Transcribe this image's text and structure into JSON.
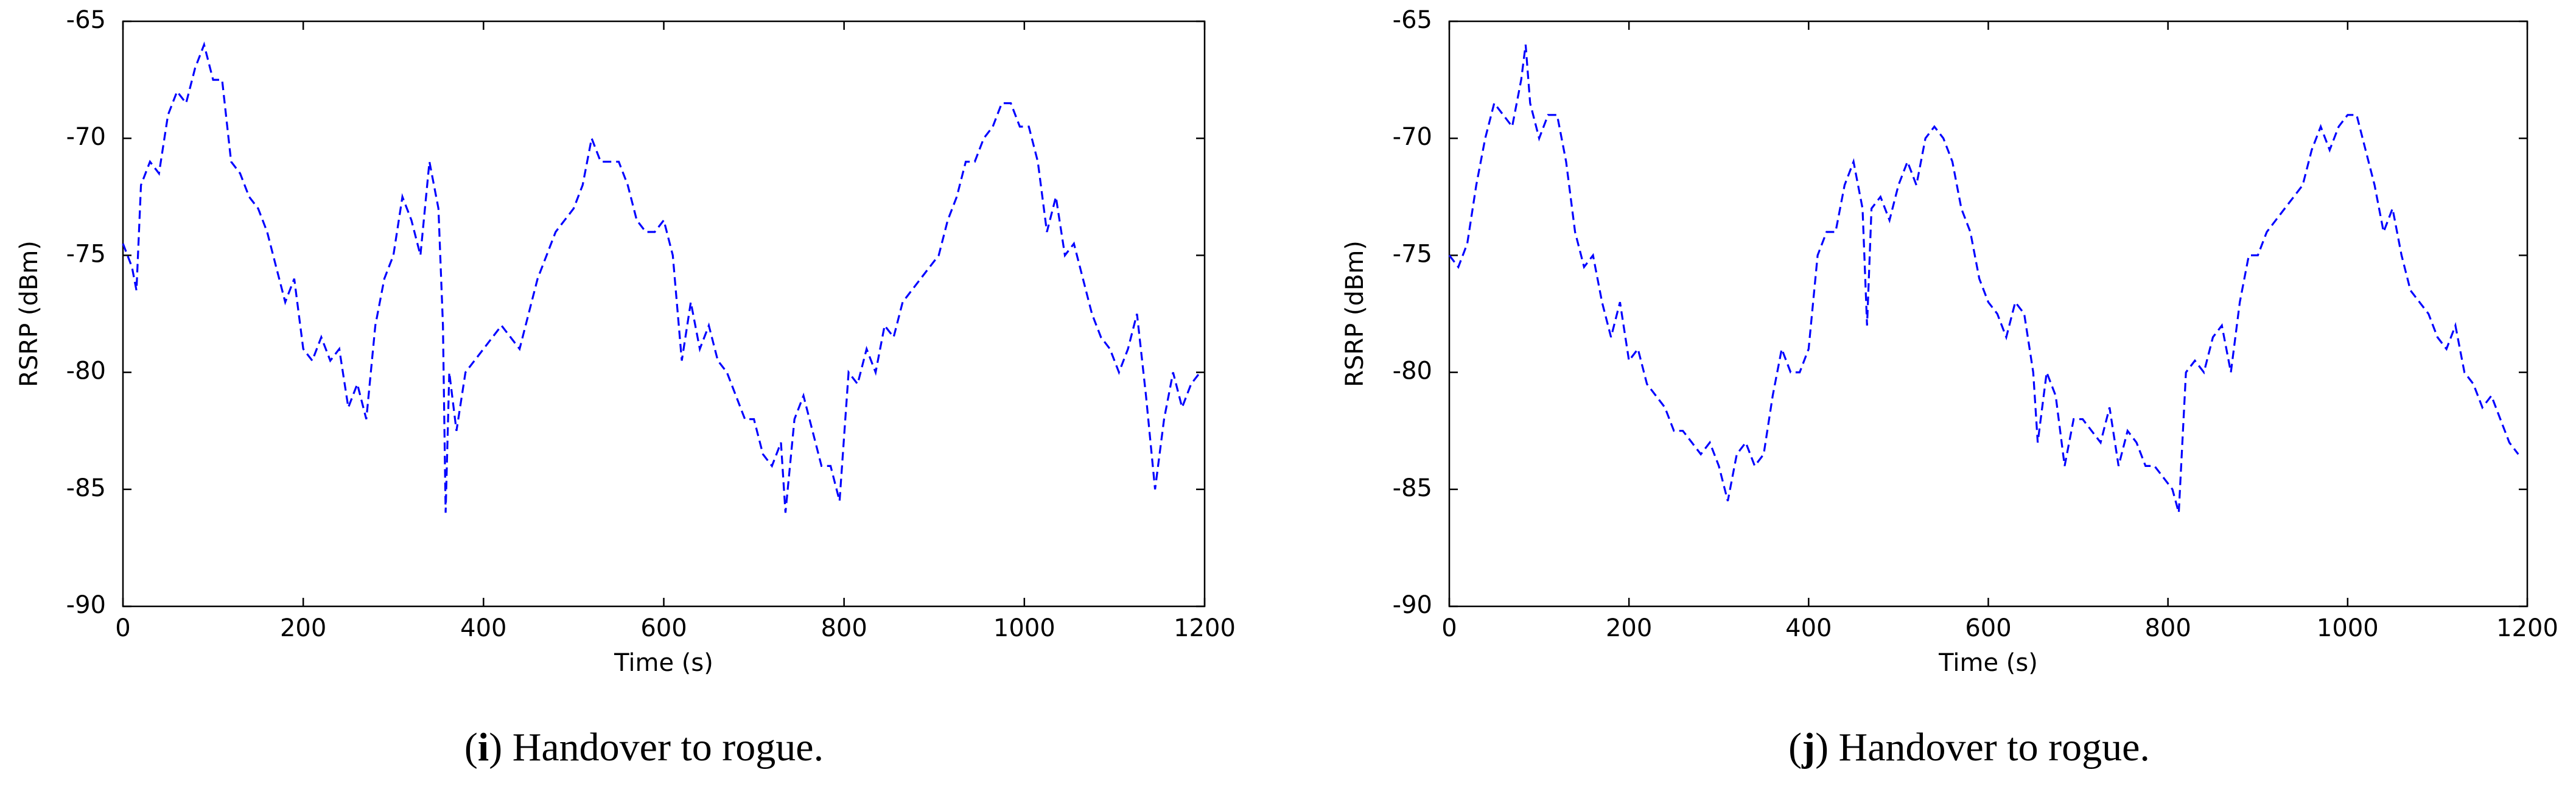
{
  "chart_data": [
    {
      "type": "line",
      "ylabel": "RSRP (dBm)",
      "xlabel": "Time (s)",
      "caption": [
        "(",
        "i",
        ") Handover to rogue."
      ],
      "xlim": [
        0,
        1200
      ],
      "ylim": [
        -90,
        -65
      ],
      "xticks": [
        0,
        200,
        400,
        600,
        800,
        1000,
        1200
      ],
      "yticks": [
        -90,
        -85,
        -80,
        -75,
        -70,
        -65
      ],
      "x": [
        0,
        10,
        15,
        20,
        30,
        40,
        50,
        60,
        70,
        80,
        90,
        100,
        110,
        120,
        130,
        140,
        150,
        160,
        170,
        180,
        190,
        200,
        210,
        220,
        230,
        240,
        250,
        260,
        270,
        280,
        290,
        300,
        310,
        320,
        330,
        340,
        350,
        355,
        358,
        362,
        370,
        380,
        390,
        400,
        420,
        440,
        450,
        460,
        470,
        480,
        490,
        500,
        510,
        520,
        530,
        540,
        550,
        560,
        570,
        580,
        590,
        600,
        610,
        620,
        630,
        640,
        650,
        660,
        670,
        680,
        690,
        700,
        710,
        720,
        730,
        735,
        745,
        755,
        765,
        775,
        785,
        795,
        805,
        815,
        825,
        835,
        845,
        855,
        865,
        875,
        885,
        895,
        905,
        915,
        925,
        935,
        945,
        955,
        965,
        975,
        985,
        995,
        1005,
        1015,
        1025,
        1035,
        1045,
        1055,
        1065,
        1075,
        1085,
        1095,
        1105,
        1115,
        1125,
        1135,
        1145,
        1155,
        1165,
        1175,
        1185,
        1195
      ],
      "series": [
        {
          "color": "#0000ff",
          "values": [
            -74.5,
            -75.5,
            -76.5,
            -72,
            -71,
            -71.5,
            -69,
            -68,
            -68.5,
            -67,
            -66,
            -67.5,
            -67.5,
            -71,
            -71.5,
            -72.5,
            -73,
            -74,
            -75.5,
            -77,
            -76,
            -79,
            -79.5,
            -78.5,
            -79.5,
            -79,
            -81.5,
            -80.5,
            -82,
            -78,
            -76,
            -75,
            -72.5,
            -73.5,
            -75,
            -71,
            -73,
            -78,
            -86,
            -80,
            -82.5,
            -80,
            -79.5,
            -79,
            -78,
            -79,
            -77.5,
            -76,
            -75,
            -74,
            -73.5,
            -73,
            -72,
            -70,
            -71,
            -71,
            -71,
            -72,
            -73.5,
            -74,
            -74,
            -73.5,
            -75,
            -79.5,
            -77,
            -79,
            -78,
            -79.5,
            -80,
            -81,
            -82,
            -82,
            -83.5,
            -84,
            -83,
            -86,
            -82,
            -81,
            -82.5,
            -84,
            -84,
            -85.5,
            -80,
            -80.5,
            -79,
            -80,
            -78,
            -78.5,
            -77,
            -76.5,
            -76,
            -75.5,
            -75,
            -73.5,
            -72.5,
            -71,
            -71,
            -70,
            -69.5,
            -68.5,
            -68.5,
            -69.5,
            -69.5,
            -71,
            -74,
            -72.5,
            -75,
            -74.5,
            -76,
            -77.5,
            -78.5,
            -79,
            -80,
            -79,
            -77.5,
            -81,
            -85,
            -82,
            -80,
            -81.5,
            -80.5,
            -80
          ]
        }
      ]
    },
    {
      "type": "line",
      "ylabel": "RSRP (dBm)",
      "xlabel": "Time (s)",
      "caption": [
        "(",
        "j",
        ") Handover to rogue."
      ],
      "xlim": [
        0,
        1200
      ],
      "ylim": [
        -90,
        -65
      ],
      "xticks": [
        0,
        200,
        400,
        600,
        800,
        1000,
        1200
      ],
      "yticks": [
        -90,
        -85,
        -80,
        -75,
        -70,
        -65
      ],
      "x": [
        0,
        10,
        20,
        30,
        40,
        50,
        60,
        70,
        80,
        85,
        90,
        100,
        110,
        120,
        130,
        140,
        150,
        160,
        170,
        180,
        190,
        200,
        210,
        220,
        230,
        240,
        250,
        260,
        270,
        280,
        290,
        300,
        310,
        320,
        330,
        340,
        350,
        360,
        370,
        380,
        390,
        400,
        410,
        420,
        430,
        440,
        450,
        460,
        465,
        470,
        480,
        490,
        500,
        510,
        520,
        530,
        540,
        550,
        560,
        570,
        580,
        590,
        600,
        610,
        620,
        630,
        640,
        650,
        655,
        665,
        675,
        685,
        695,
        705,
        715,
        725,
        735,
        745,
        755,
        765,
        775,
        785,
        795,
        805,
        812,
        820,
        830,
        840,
        850,
        860,
        870,
        880,
        890,
        900,
        910,
        920,
        930,
        940,
        950,
        960,
        970,
        980,
        990,
        1000,
        1010,
        1020,
        1030,
        1040,
        1050,
        1060,
        1070,
        1080,
        1090,
        1100,
        1110,
        1120,
        1130,
        1140,
        1150,
        1160,
        1170,
        1180,
        1190
      ],
      "series": [
        {
          "color": "#0000ff",
          "values": [
            -75,
            -75.5,
            -74.5,
            -72,
            -70,
            -68.5,
            -69,
            -69.5,
            -67.5,
            -66,
            -68.5,
            -70,
            -69,
            -69,
            -71,
            -74,
            -75.5,
            -75,
            -77,
            -78.5,
            -77,
            -79.5,
            -79,
            -80.5,
            -81,
            -81.5,
            -82.5,
            -82.5,
            -83,
            -83.5,
            -83,
            -84,
            -85.5,
            -83.5,
            -83,
            -84,
            -83.5,
            -81,
            -79,
            -80,
            -80,
            -79,
            -75,
            -74,
            -74,
            -72,
            -71,
            -73,
            -78,
            -73,
            -72.5,
            -73.5,
            -72,
            -71,
            -72,
            -70,
            -69.5,
            -70,
            -71,
            -73,
            -74,
            -76,
            -77,
            -77.5,
            -78.5,
            -77,
            -77.5,
            -80,
            -83,
            -80,
            -81,
            -84,
            -82,
            -82,
            -82.5,
            -83,
            -81.5,
            -84,
            -82.5,
            -83,
            -84,
            -84,
            -84.5,
            -85,
            -86,
            -80,
            -79.5,
            -80,
            -78.5,
            -78,
            -80,
            -77,
            -75,
            -75,
            -74,
            -73.5,
            -73,
            -72.5,
            -72,
            -70.5,
            -69.5,
            -70.5,
            -69.5,
            -69,
            -69,
            -70.5,
            -72,
            -74,
            -73,
            -75,
            -76.5,
            -77,
            -77.5,
            -78.5,
            -79,
            -78,
            -80,
            -80.5,
            -81.5,
            -81,
            -82,
            -83,
            -83.5
          ]
        }
      ]
    }
  ]
}
